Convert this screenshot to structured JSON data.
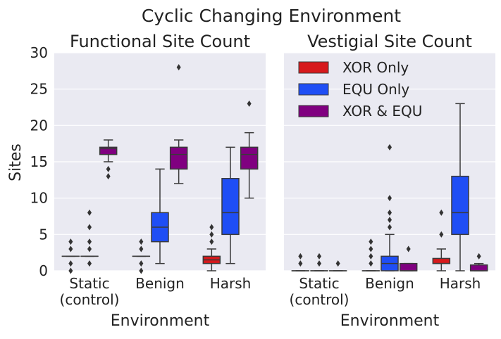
{
  "chart_data": {
    "type": "boxplot",
    "suptitle": "Cyclic Changing Environment",
    "ylabel": "Sites",
    "ylim": [
      0,
      30
    ],
    "yticks": [
      0,
      5,
      10,
      15,
      20,
      25,
      30
    ],
    "categories": [
      "Static\n(control)",
      "Benign",
      "Harsh"
    ],
    "legend_position": "upper-left of right panel",
    "grid": true,
    "series": [
      {
        "name": "XOR Only",
        "color": "#d7191c"
      },
      {
        "name": "EQU Only",
        "color": "#1f4ef5"
      },
      {
        "name": "XOR & EQU",
        "color": "#800080"
      }
    ],
    "panels": [
      {
        "title": "Functional Site Count",
        "xlabel": "Environment",
        "boxes": [
          [
            {
              "q1": 2,
              "med": 2,
              "q3": 2,
              "whislo": 2,
              "whishi": 2,
              "fliers": [
                0,
                1,
                3,
                4
              ]
            },
            {
              "q1": 2,
              "med": 2,
              "q3": 2,
              "whislo": 2,
              "whishi": 2,
              "fliers": [
                1,
                3,
                4,
                6,
                8
              ]
            },
            {
              "q1": 16,
              "med": 16.8,
              "q3": 17,
              "whislo": 15,
              "whishi": 18,
              "fliers": [
                13,
                14
              ]
            }
          ],
          [
            {
              "q1": 2,
              "med": 2,
              "q3": 2,
              "whislo": 2,
              "whishi": 2,
              "fliers": [
                0,
                1,
                3,
                4
              ]
            },
            {
              "q1": 4,
              "med": 6,
              "q3": 8,
              "whislo": 1,
              "whishi": 14,
              "fliers": []
            },
            {
              "q1": 14,
              "med": 16,
              "q3": 17,
              "whislo": 12,
              "whishi": 18,
              "fliers": [
                28
              ]
            }
          ],
          [
            {
              "q1": 1,
              "med": 1.5,
              "q3": 2,
              "whislo": 0,
              "whishi": 3,
              "fliers": [
                4,
                5,
                6
              ]
            },
            {
              "q1": 5,
              "med": 8,
              "q3": 12.7,
              "whislo": 1,
              "whishi": 17,
              "fliers": []
            },
            {
              "q1": 14,
              "med": 16,
              "q3": 17,
              "whislo": 10,
              "whishi": 19,
              "fliers": [
                23
              ]
            }
          ]
        ]
      },
      {
        "title": "Vestigial Site Count",
        "xlabel": "Environment",
        "boxes": [
          [
            {
              "q1": 0,
              "med": 0,
              "q3": 0,
              "whislo": 0,
              "whishi": 0,
              "fliers": [
                1,
                2
              ]
            },
            {
              "q1": 0,
              "med": 0,
              "q3": 0,
              "whislo": 0,
              "whishi": 0,
              "fliers": [
                1,
                2
              ]
            },
            {
              "q1": 0,
              "med": 0,
              "q3": 0,
              "whislo": 0,
              "whishi": 0,
              "fliers": [
                1
              ]
            }
          ],
          [
            {
              "q1": 0,
              "med": 0,
              "q3": 0,
              "whislo": 0,
              "whishi": 0,
              "fliers": [
                1,
                2,
                3,
                4
              ]
            },
            {
              "q1": 0,
              "med": 1,
              "q3": 2,
              "whislo": 0,
              "whishi": 5,
              "fliers": [
                6,
                7,
                8,
                10,
                17
              ]
            },
            {
              "q1": 0,
              "med": 0,
              "q3": 1,
              "whislo": 0,
              "whishi": 1,
              "fliers": [
                3
              ]
            }
          ],
          [
            {
              "q1": 1,
              "med": 1,
              "q3": 1.7,
              "whislo": 0,
              "whishi": 3,
              "fliers": [
                5,
                8
              ]
            },
            {
              "q1": 5,
              "med": 8,
              "q3": 13,
              "whislo": 0,
              "whishi": 23,
              "fliers": []
            },
            {
              "q1": 0,
              "med": 0,
              "q3": 0.8,
              "whislo": 0,
              "whishi": 1,
              "fliers": [
                2
              ]
            }
          ]
        ]
      }
    ]
  }
}
